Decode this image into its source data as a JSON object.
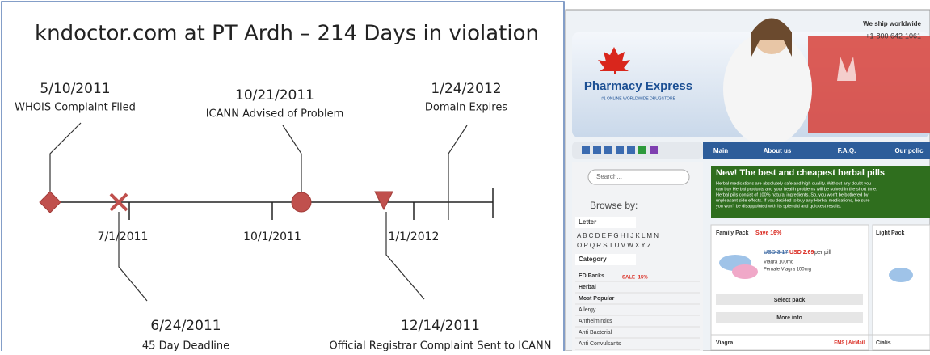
{
  "slide": {
    "title": "kndoctor.com at PT Ardh – 214 Days in violation",
    "events": [
      {
        "date": "5/10/2011",
        "label": "WHOIS Complaint Filed"
      },
      {
        "date": "6/24/2011",
        "label": "45 Day Deadline"
      },
      {
        "date": "10/21/2011",
        "label": "ICANN Advised of Problem"
      },
      {
        "date": "12/14/2011",
        "label": "Official Registrar Complaint Sent to ICANN"
      },
      {
        "date": "1/24/2012",
        "label": "Domain Expires"
      }
    ],
    "axis_labels": [
      "7/1/2011",
      "10/1/2011",
      "1/1/2012"
    ]
  },
  "website": {
    "ship": "We ship worldwide",
    "phone": "+1-800 642-1061",
    "logo": "Pharmacy Express",
    "tagline": "#1 ONLINE WORLDWIDE DRUGSTORE",
    "nav": [
      "Main",
      "About us",
      "F.A.Q.",
      "Our polic"
    ],
    "search": "Search...",
    "browse": "Browse by:",
    "letter": "Letter",
    "letters": [
      "A B C D E F G H I J K L M N",
      "O P Q R S T U V W X Y Z"
    ],
    "category": "Category",
    "categories": [
      "ED Packs",
      "Herbal",
      "Most Popular",
      "Allergy",
      "Anthelmintics",
      "Anti Bacterial",
      "Anti Convulsants"
    ],
    "sale": "SALE -15%",
    "banner_title": "New! The best and cheapest herbal pills",
    "banner_text": [
      "Herbal medications are absolutely safe and high quality. Without any doubt you",
      "can buy Herbal products and your health problems will be solved in the short time.",
      "Herbal pills consist of 100% natural ingredients. So, you won't be bothered by",
      "unpleasant side effects. If you decided to buy any Herbal medications, be sure",
      "you won't be disappointed with its splendid and quickest results."
    ],
    "pack1": "Family Pack",
    "save1": "Save 16%",
    "pack2": "Light Pack",
    "old_price": "USD 3.17",
    "new_price": "USD 2.69",
    "per": "per pill",
    "drug1": "Viagra 100mg",
    "drug2": "Female Viagra 100mg",
    "select": "Select pack",
    "more": "More info",
    "viagra": "Viagra",
    "ship_opts": "EMS | AirMail",
    "cialis": "Cialis"
  }
}
